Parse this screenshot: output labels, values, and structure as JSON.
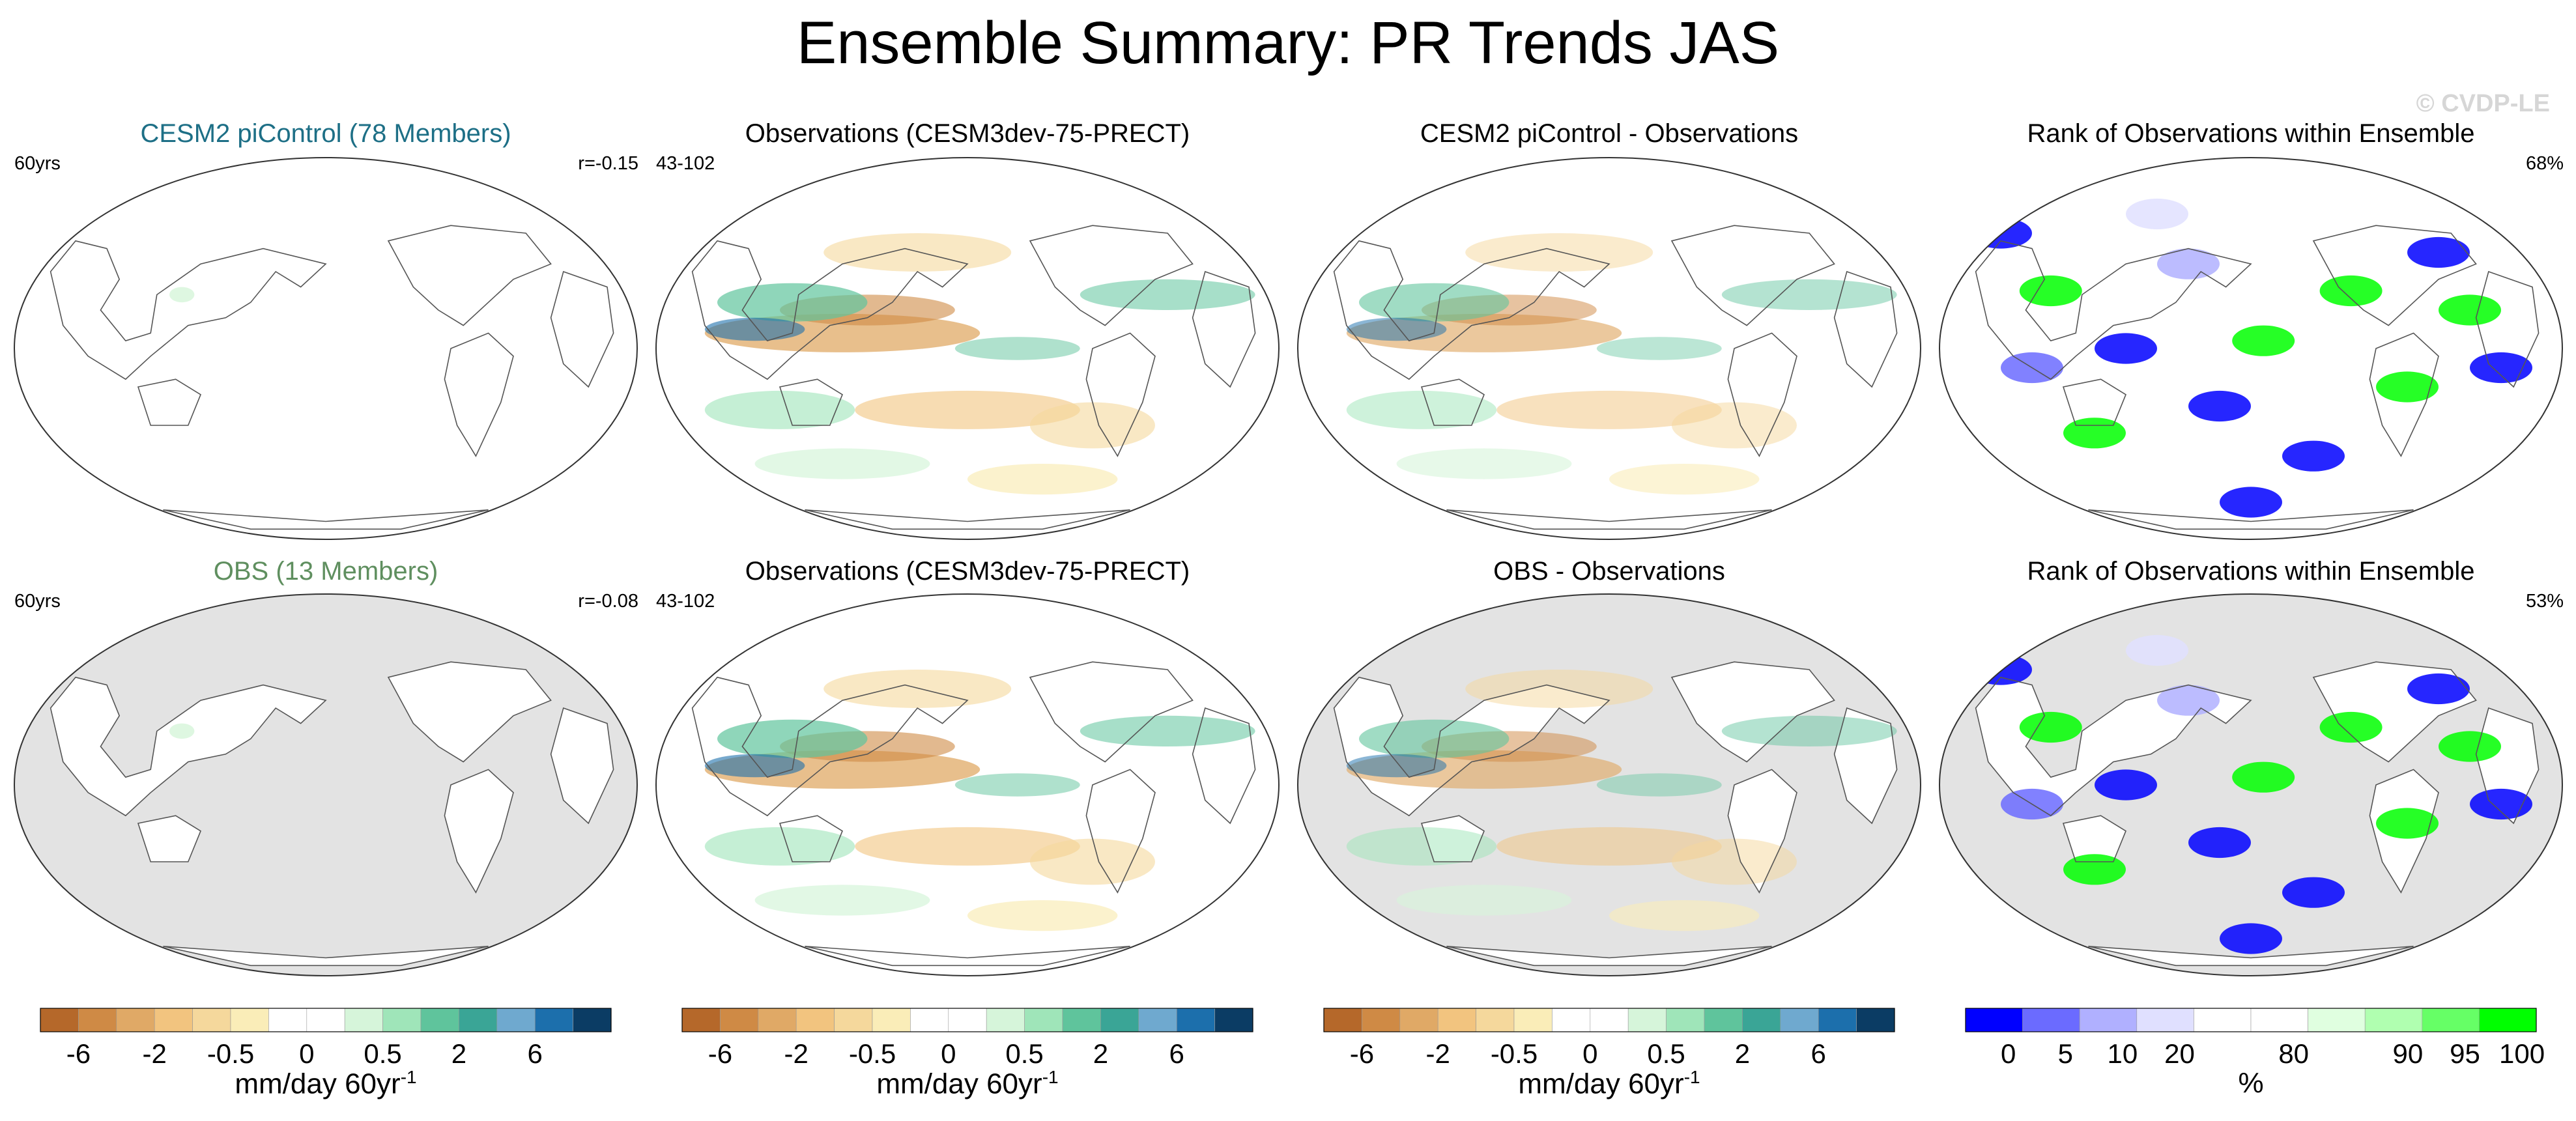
{
  "title": "Ensemble Summary: PR Trends JAS",
  "watermark": "© CVDP-LE",
  "panels": [
    {
      "title": "CESM2 piControl (78 Members)",
      "title_color": "#1d6f86",
      "left_label": "60yrs",
      "right_label": "r=-0.15",
      "field": "ensemble-mean",
      "land_grey": false
    },
    {
      "title": "Observations (CESM3dev-75-PRECT)",
      "title_color": "#000000",
      "left_label": "43-102",
      "right_label": "",
      "field": "obs",
      "land_grey": false
    },
    {
      "title": "CESM2 piControl - Observations",
      "title_color": "#000000",
      "left_label": "",
      "right_label": "",
      "field": "diff",
      "land_grey": false
    },
    {
      "title": "Rank of Observations within Ensemble",
      "title_color": "#000000",
      "left_label": "",
      "right_label": "68%",
      "field": "rank",
      "land_grey": false
    },
    {
      "title": "OBS (13 Members)",
      "title_color": "#5f8f5f",
      "left_label": "60yrs",
      "right_label": "r=-0.08",
      "field": "ensemble-mean",
      "land_grey": true
    },
    {
      "title": "Observations (CESM3dev-75-PRECT)",
      "title_color": "#000000",
      "left_label": "43-102",
      "right_label": "",
      "field": "obs",
      "land_grey": false
    },
    {
      "title": "OBS - Observations",
      "title_color": "#000000",
      "left_label": "",
      "right_label": "",
      "field": "diff",
      "land_grey": true
    },
    {
      "title": "Rank of Observations within Ensemble",
      "title_color": "#000000",
      "left_label": "",
      "right_label": "53%",
      "field": "rank",
      "land_grey": true
    }
  ],
  "colorbars": [
    {
      "unit": "mm/day 60yr",
      "unit_sup": "-1",
      "ticks": [
        "-6",
        "-2",
        "-0.5",
        "0",
        "0.5",
        "2",
        "6"
      ],
      "colors": [
        "#b5682a",
        "#cf8a45",
        "#e0a966",
        "#f2c47f",
        "#f5d89c",
        "#faedb8",
        "#ffffff",
        "#ffffff",
        "#d6f5da",
        "#9fe5b9",
        "#5fc49c",
        "#3aa596",
        "#6fa9cf",
        "#1c6fac",
        "#0b3c64"
      ]
    },
    {
      "unit": "mm/day 60yr",
      "unit_sup": "-1",
      "ticks": [
        "-6",
        "-2",
        "-0.5",
        "0",
        "0.5",
        "2",
        "6"
      ],
      "colors": [
        "#b5682a",
        "#cf8a45",
        "#e0a966",
        "#f2c47f",
        "#f5d89c",
        "#faedb8",
        "#ffffff",
        "#ffffff",
        "#d6f5da",
        "#9fe5b9",
        "#5fc49c",
        "#3aa596",
        "#6fa9cf",
        "#1c6fac",
        "#0b3c64"
      ]
    },
    {
      "unit": "mm/day 60yr",
      "unit_sup": "-1",
      "ticks": [
        "-6",
        "-2",
        "-0.5",
        "0",
        "0.5",
        "2",
        "6"
      ],
      "colors": [
        "#b5682a",
        "#cf8a45",
        "#e0a966",
        "#f2c47f",
        "#f5d89c",
        "#faedb8",
        "#ffffff",
        "#ffffff",
        "#d6f5da",
        "#9fe5b9",
        "#5fc49c",
        "#3aa596",
        "#6fa9cf",
        "#1c6fac",
        "#0b3c64"
      ]
    },
    {
      "unit": "%",
      "unit_sup": "",
      "ticks": [
        "0",
        "5",
        "10",
        "20",
        "80",
        "90",
        "95",
        "100"
      ],
      "colors": [
        "#0000ff",
        "#6b6bff",
        "#b0b0ff",
        "#e0e0ff",
        "#ffffff",
        "#ffffff",
        "#e0ffe0",
        "#b0ffb0",
        "#66ff66",
        "#00ff00"
      ]
    }
  ],
  "chart_data": {
    "type": "heatmap",
    "title": "Ensemble Summary: PR Trends JAS",
    "panels": [
      "CESM2 piControl (78 Members)",
      "Observations (CESM3dev-75-PRECT)",
      "CESM2 piControl - Observations",
      "Rank of Observations within Ensemble",
      "OBS (13 Members)",
      "Observations (CESM3dev-75-PRECT)",
      "OBS - Observations",
      "Rank of Observations within Ensemble"
    ],
    "trend_levels": [
      -6,
      -2,
      -0.5,
      0,
      0.5,
      2,
      6
    ],
    "rank_levels": [
      0,
      5,
      10,
      20,
      80,
      90,
      95,
      100
    ],
    "rank_summary": [
      68,
      53
    ],
    "pattern_correlation": [
      -0.15,
      -0.08
    ]
  }
}
